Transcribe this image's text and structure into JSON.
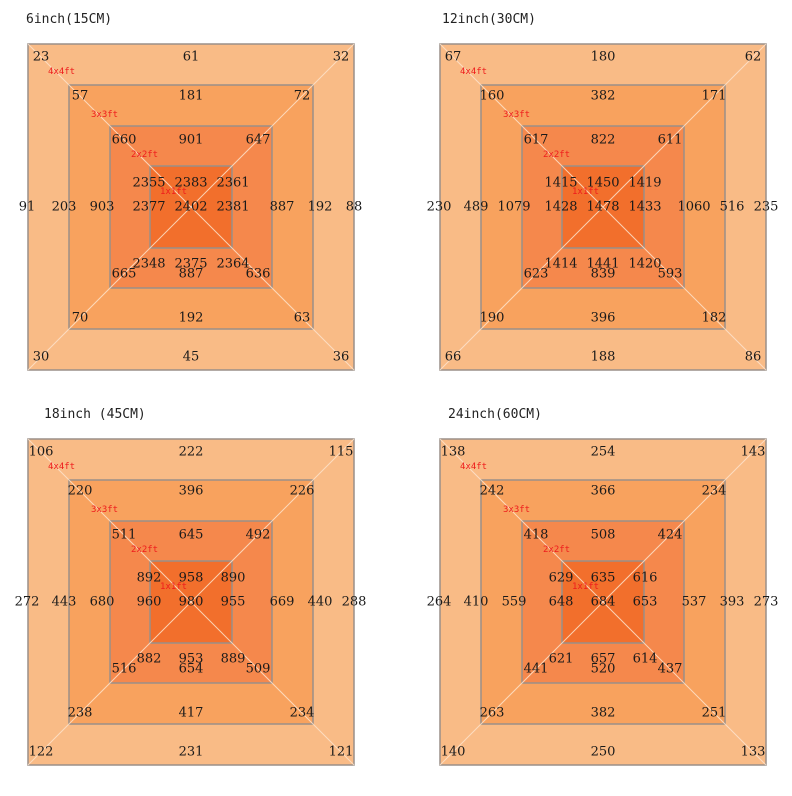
{
  "colors": {
    "zone_4x4": "#f9bb86",
    "zone_3x3": "#f8a25e",
    "zone_2x2": "#f5884c",
    "zone_1x1": "#f26f2c",
    "frame": "#9a8f88",
    "diagonal": "#fde3cc",
    "label": "#ee1c1c"
  },
  "zone_labels": [
    "4x4ft",
    "3x3ft",
    "2x2ft",
    "1x1ft"
  ],
  "panels": [
    {
      "title": "6inch(15CM)",
      "readings": {
        "z4": {
          "tl": "23",
          "t": "61",
          "tr": "32",
          "l": "91",
          "r": "88",
          "bl": "30",
          "b": "45",
          "br": "36"
        },
        "z3": {
          "tl": "57",
          "t": "181",
          "tr": "72",
          "l": "203",
          "r": "192",
          "bl": "70",
          "b": "192",
          "br": "63"
        },
        "z2": {
          "tl": "660",
          "t": "901",
          "tr": "647",
          "l": "903",
          "r": "887",
          "bl": "665",
          "b": "887",
          "br": "636"
        },
        "z1": {
          "tl": "2355",
          "t": "2383",
          "tr": "2361",
          "l": "2377",
          "c": "2402",
          "r": "2381",
          "bl": "2348",
          "b": "2375",
          "br": "2364"
        }
      }
    },
    {
      "title": "12inch(30CM)",
      "readings": {
        "z4": {
          "tl": "67",
          "t": "180",
          "tr": "62",
          "l": "230",
          "r": "235",
          "bl": "66",
          "b": "188",
          "br": "86"
        },
        "z3": {
          "tl": "160",
          "t": "382",
          "tr": "171",
          "l": "489",
          "r": "516",
          "bl": "190",
          "b": "396",
          "br": "182"
        },
        "z2": {
          "tl": "617",
          "t": "822",
          "tr": "611",
          "l": "1079",
          "r": "1060",
          "bl": "623",
          "b": "839",
          "br": "593"
        },
        "z1": {
          "tl": "1415",
          "t": "1450",
          "tr": "1419",
          "l": "1428",
          "c": "1478",
          "r": "1433",
          "bl": "1414",
          "b": "1441",
          "br": "1420"
        }
      }
    },
    {
      "title": "18inch (45CM)",
      "readings": {
        "z4": {
          "tl": "106",
          "t": "222",
          "tr": "115",
          "l": "272",
          "r": "288",
          "bl": "122",
          "b": "231",
          "br": "121"
        },
        "z3": {
          "tl": "220",
          "t": "396",
          "tr": "226",
          "l": "443",
          "r": "440",
          "bl": "238",
          "b": "417",
          "br": "234"
        },
        "z2": {
          "tl": "511",
          "t": "645",
          "tr": "492",
          "l": "680",
          "r": "669",
          "bl": "516",
          "b": "654",
          "br": "509"
        },
        "z1": {
          "tl": "892",
          "t": "958",
          "tr": "890",
          "l": "960",
          "c": "980",
          "r": "955",
          "bl": "882",
          "b": "953",
          "br": "889"
        }
      }
    },
    {
      "title": "24inch(60CM)",
      "readings": {
        "z4": {
          "tl": "138",
          "t": "254",
          "tr": "143",
          "l": "264",
          "r": "273",
          "bl": "140",
          "b": "250",
          "br": "133"
        },
        "z3": {
          "tl": "242",
          "t": "366",
          "tr": "234",
          "l": "410",
          "r": "393",
          "bl": "263",
          "b": "382",
          "br": "251"
        },
        "z2": {
          "tl": "418",
          "t": "508",
          "tr": "424",
          "l": "559",
          "r": "537",
          "bl": "441",
          "b": "520",
          "br": "437"
        },
        "z1": {
          "tl": "629",
          "t": "635",
          "tr": "616",
          "l": "648",
          "c": "684",
          "r": "653",
          "bl": "621",
          "b": "657",
          "br": "614"
        }
      }
    }
  ]
}
